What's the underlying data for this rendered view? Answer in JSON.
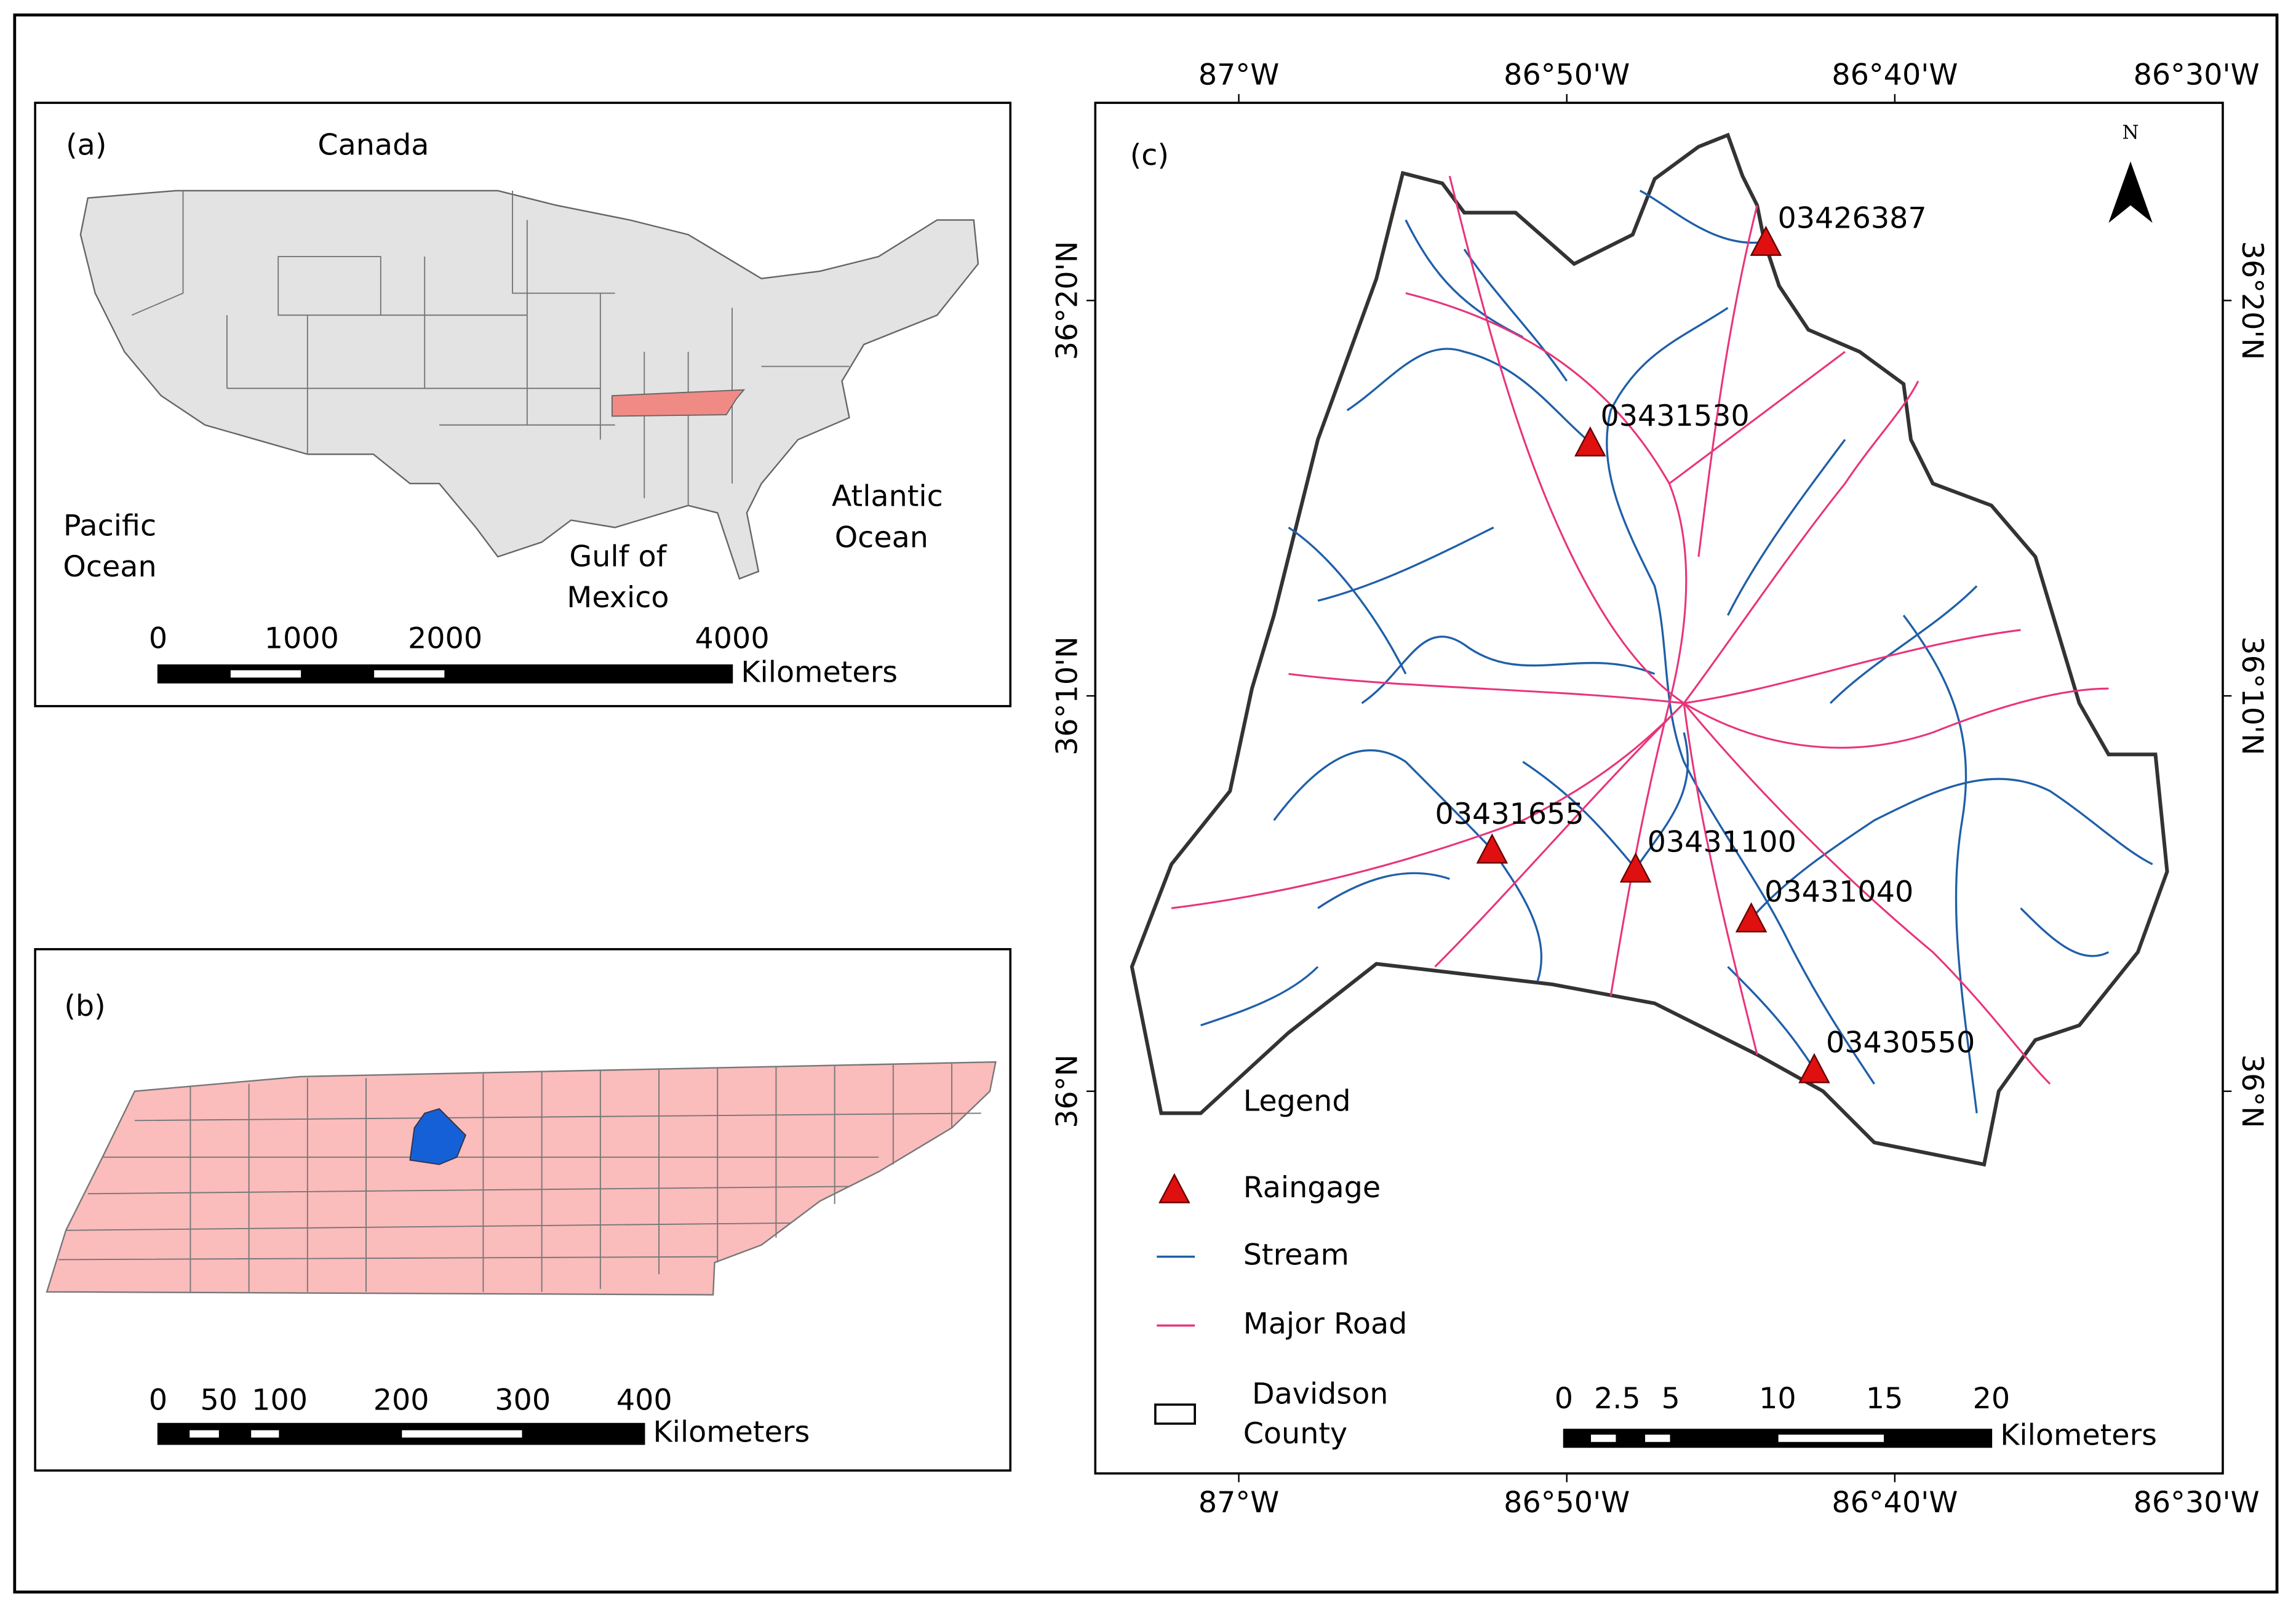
{
  "panel_a": {
    "label": "(a)",
    "places": [
      {
        "lines": [
          "Canada"
        ]
      },
      {
        "lines": [
          "Pacific",
          "Ocean"
        ]
      },
      {
        "lines": [
          "Atlantic",
          "Ocean"
        ]
      },
      {
        "lines": [
          "Gulf of",
          "Mexico"
        ]
      }
    ],
    "scale": {
      "ticks": [
        0,
        1000,
        2000,
        4000
      ],
      "unit": "Kilometers"
    }
  },
  "panel_b": {
    "label": "(b)",
    "scale": {
      "ticks": [
        0,
        50,
        100,
        200,
        300,
        400
      ],
      "unit": "Kilometers"
    }
  },
  "panel_c": {
    "label": "(c)",
    "north": "N",
    "lon_labels": [
      "87°W",
      "86°50'W",
      "86°40'W",
      "86°30'W"
    ],
    "lat_labels": [
      "36°20'N",
      "36°10'N",
      "36°N"
    ],
    "gauges": [
      "03426387",
      "03431530",
      "03431655",
      "03431100",
      "03431040",
      "03430550"
    ],
    "legend": {
      "title": "Legend",
      "items": [
        {
          "lines": [
            "Raingage"
          ]
        },
        {
          "lines": [
            "Stream"
          ]
        },
        {
          "lines": [
            "Major Road"
          ]
        },
        {
          "lines": [
            "Davidson",
            "County"
          ]
        }
      ]
    },
    "scale": {
      "ticks": [
        0,
        2.5,
        5,
        10,
        15,
        20
      ],
      "unit": "Kilometers"
    }
  }
}
